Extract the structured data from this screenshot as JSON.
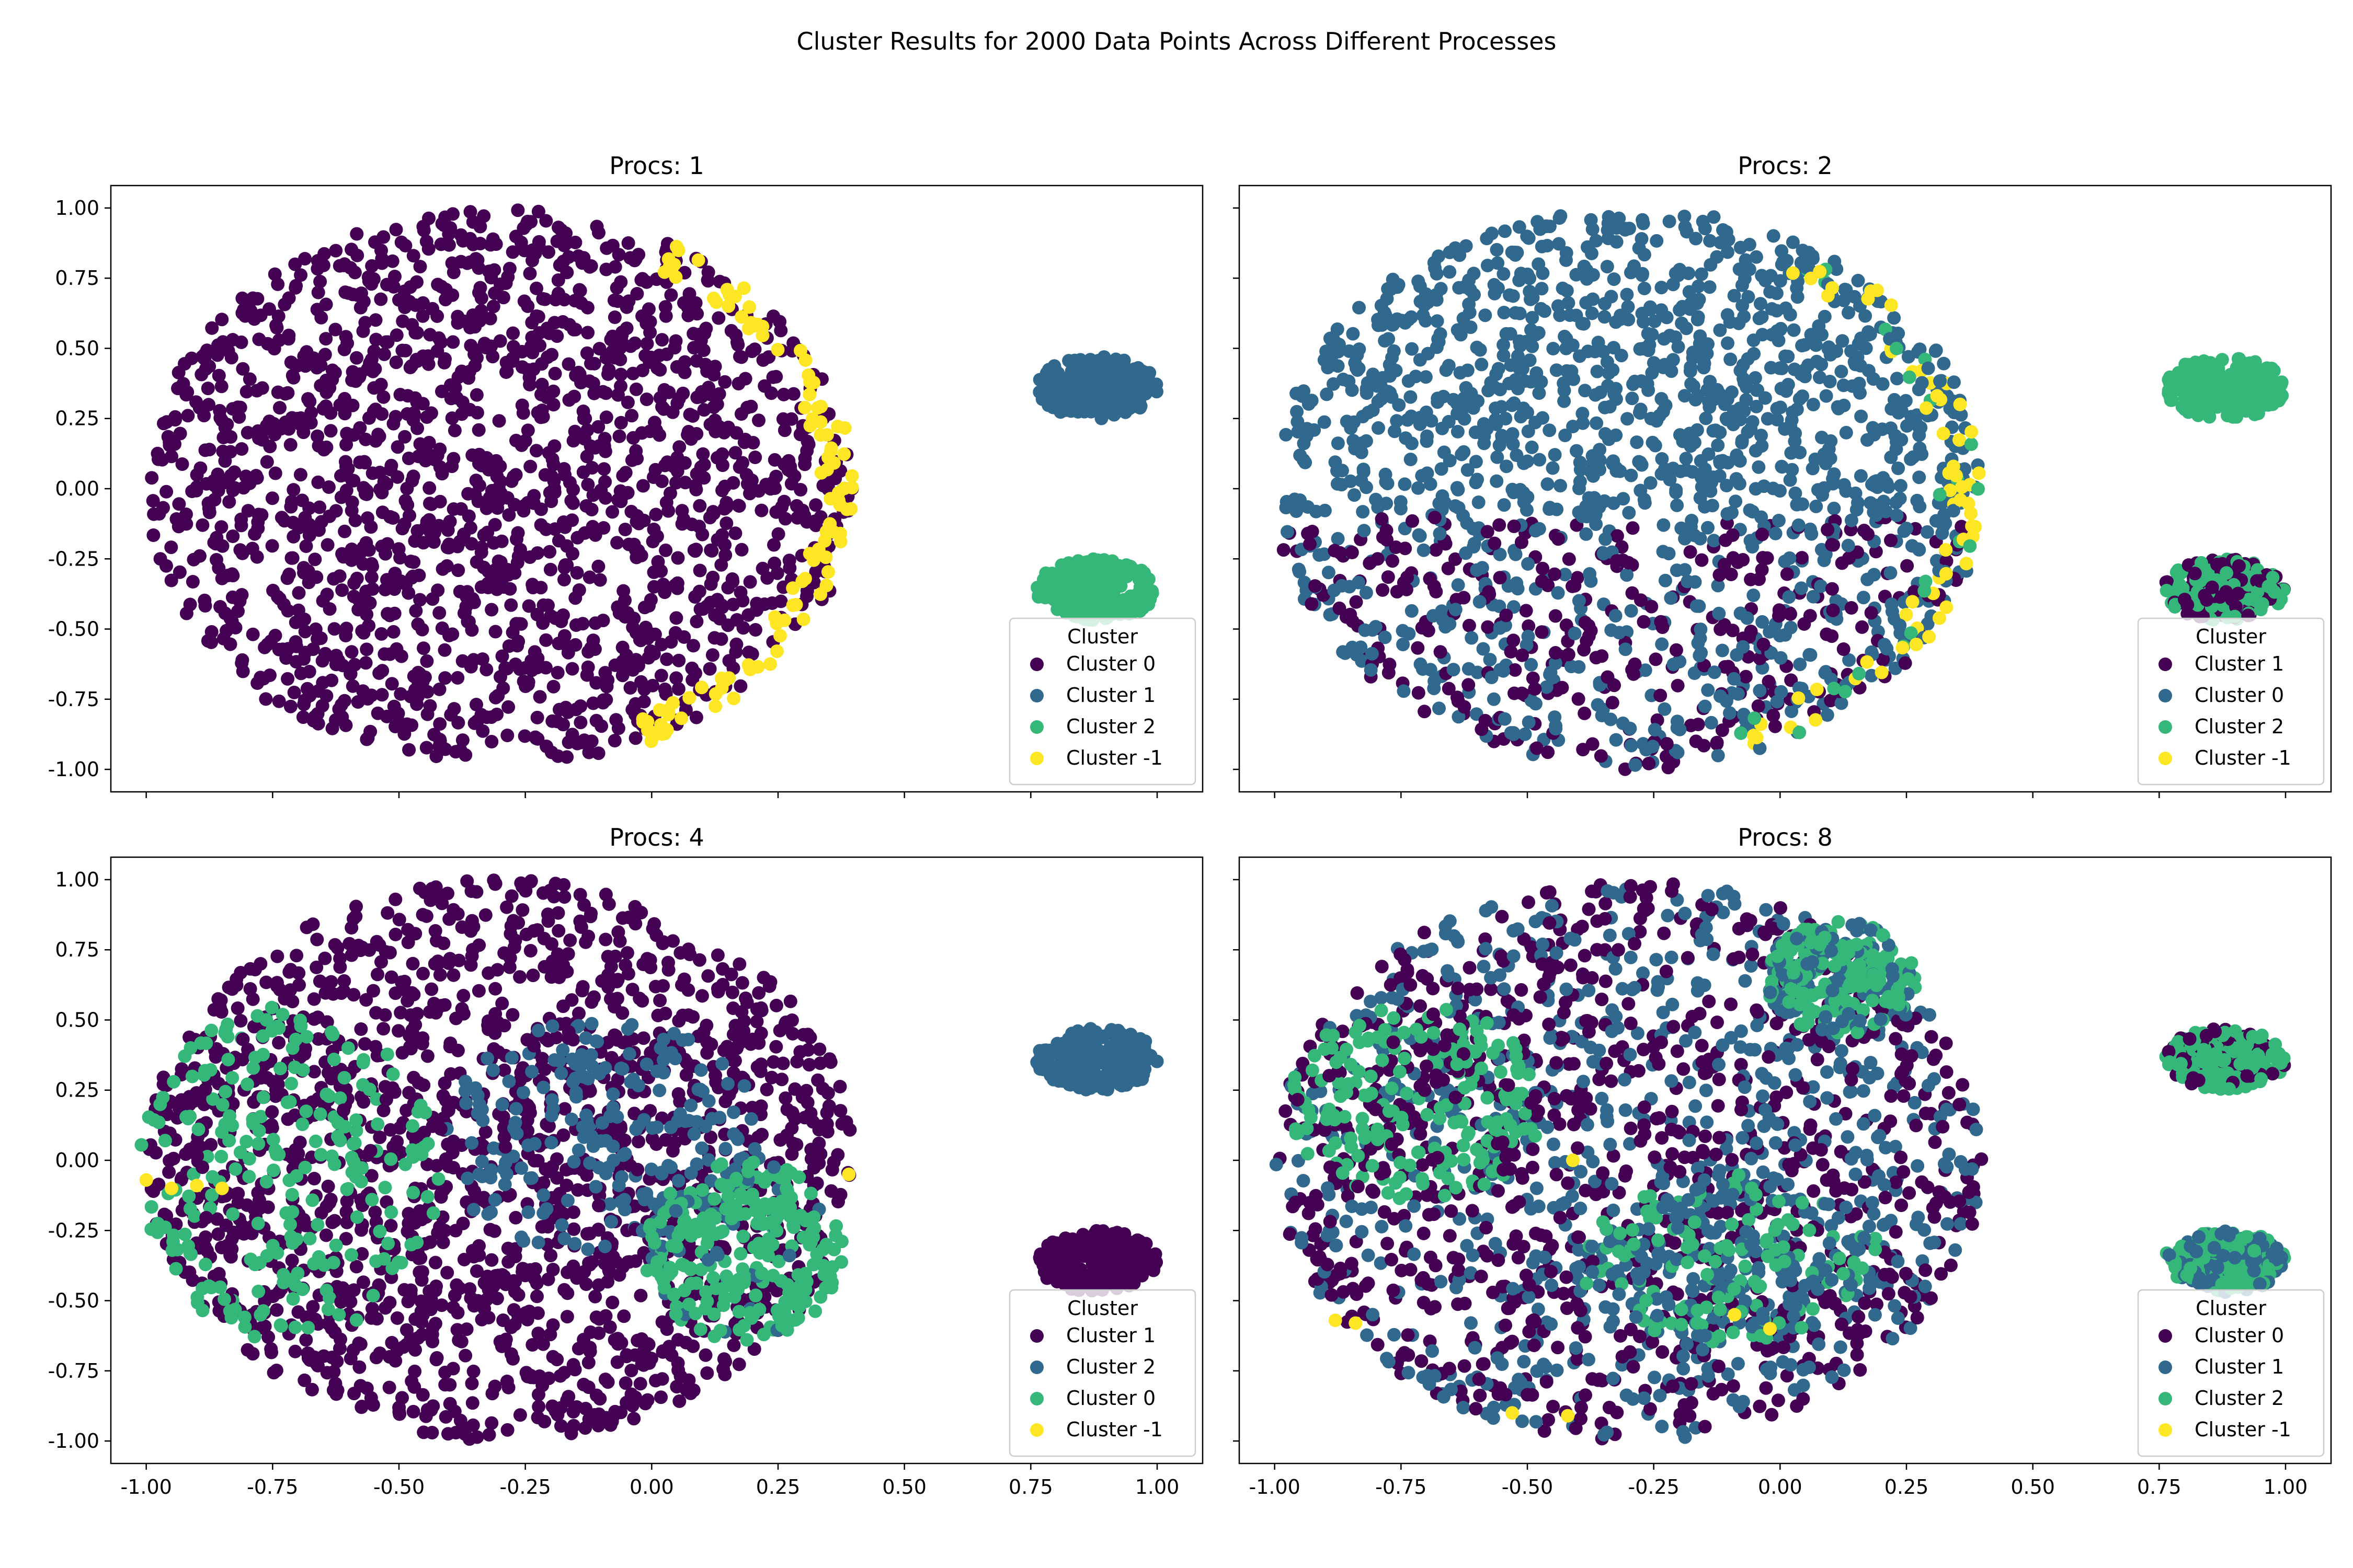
{
  "figure": {
    "title": "Cluster Results for 2000 Data Points Across Different Processes"
  },
  "colors": {
    "0": "#440154",
    "1": "#31688e",
    "2": "#35b779",
    "-1": "#fde725"
  },
  "chart_data": [
    {
      "type": "scatter",
      "title": "Procs: 1",
      "xlim": [
        -1.07,
        1.09
      ],
      "ylim": [
        -1.08,
        1.08
      ],
      "xticks": [
        "-1.00",
        "-0.75",
        "-0.50",
        "-0.25",
        "0.00",
        "0.25",
        "0.50",
        "0.75",
        "1.00"
      ],
      "yticks": [
        "1.00",
        "0.75",
        "0.50",
        "0.25",
        "0.00",
        "-0.25",
        "-0.50",
        "-0.75",
        "-1.00"
      ],
      "legend": {
        "title": "Cluster",
        "entries": [
          "Cluster 0",
          "Cluster 1",
          "Cluster 2",
          "Cluster -1"
        ],
        "colors": [
          "#440154",
          "#31688e",
          "#35b779",
          "#fde725"
        ],
        "placement": "lower right"
      },
      "regions": [
        {
          "shape": "disc",
          "cx": -0.3,
          "cy": 0.0,
          "rx": 0.7,
          "ry": 1.0,
          "mix": {
            "0": 1.0
          }
        },
        {
          "shape": "arc",
          "cx": -0.3,
          "cy": 0.0,
          "rx": 0.7,
          "ry": 1.0,
          "inner": 0.9,
          "angle_range": [
            -65,
            60
          ],
          "mix": {
            "-1": 1.0
          }
        },
        {
          "shape": "blob",
          "cx": 0.88,
          "cy": 0.36,
          "rx": 0.12,
          "ry": 0.11,
          "mix": {
            "1": 1.0
          }
        },
        {
          "shape": "blob",
          "cx": 0.88,
          "cy": -0.36,
          "rx": 0.12,
          "ry": 0.11,
          "mix": {
            "2": 1.0
          }
        }
      ]
    },
    {
      "type": "scatter",
      "title": "Procs: 2",
      "xlim": [
        -1.07,
        1.09
      ],
      "ylim": [
        -1.08,
        1.08
      ],
      "xticks": [
        "-1.00",
        "-0.75",
        "-0.50",
        "-0.25",
        "0.00",
        "0.25",
        "0.50",
        "0.75",
        "1.00"
      ],
      "yticks": [
        "1.00",
        "0.75",
        "0.50",
        "0.25",
        "0.00",
        "-0.25",
        "-0.50",
        "-0.75",
        "-1.00"
      ],
      "legend": {
        "title": "Cluster",
        "entries": [
          "Cluster 1",
          "Cluster 0",
          "Cluster 2",
          "Cluster -1"
        ],
        "colors": [
          "#440154",
          "#31688e",
          "#35b779",
          "#fde725"
        ],
        "placement": "lower right"
      },
      "regions": [
        {
          "shape": "disc",
          "cx": -0.3,
          "cy": 0.0,
          "rx": 0.7,
          "ry": 1.0,
          "split_y": -0.1,
          "upper_mix": {
            "1": 1.0
          },
          "lower_mix": {
            "1": 0.55,
            "0": 0.45
          }
        },
        {
          "shape": "arc",
          "cx": -0.3,
          "cy": 0.0,
          "rx": 0.7,
          "ry": 1.0,
          "inner": 0.88,
          "angle_range": [
            -70,
            60
          ],
          "mix": {
            "-1": 0.55,
            "2": 0.2,
            "1": 0.25
          }
        },
        {
          "shape": "blob",
          "cx": 0.88,
          "cy": 0.36,
          "rx": 0.12,
          "ry": 0.11,
          "mix": {
            "2": 1.0
          }
        },
        {
          "shape": "blob",
          "cx": 0.88,
          "cy": -0.36,
          "rx": 0.12,
          "ry": 0.11,
          "mix": {
            "2": 0.6,
            "0": 0.4
          }
        }
      ]
    },
    {
      "type": "scatter",
      "title": "Procs: 4",
      "xlim": [
        -1.07,
        1.09
      ],
      "ylim": [
        -1.08,
        1.08
      ],
      "xticks": [
        "-1.00",
        "-0.75",
        "-0.50",
        "-0.25",
        "0.00",
        "0.25",
        "0.50",
        "0.75",
        "1.00"
      ],
      "yticks": [
        "1.00",
        "0.75",
        "0.50",
        "0.25",
        "0.00",
        "-0.25",
        "-0.50",
        "-0.75",
        "-1.00"
      ],
      "legend": {
        "title": "Cluster",
        "entries": [
          "Cluster 1",
          "Cluster 2",
          "Cluster 0",
          "Cluster -1"
        ],
        "colors": [
          "#440154",
          "#31688e",
          "#35b779",
          "#fde725"
        ],
        "placement": "lower right"
      },
      "regions": [
        {
          "shape": "disc",
          "cx": -0.3,
          "cy": 0.0,
          "rx": 0.7,
          "ry": 1.0,
          "mix": {
            "0": 1.0
          }
        },
        {
          "shape": "disc",
          "cx": -0.72,
          "cy": -0.05,
          "rx": 0.3,
          "ry": 0.6,
          "mix": {
            "2": 0.9,
            "0": 0.1
          }
        },
        {
          "shape": "disc",
          "cx": -0.1,
          "cy": 0.08,
          "rx": 0.32,
          "ry": 0.42,
          "mix": {
            "1": 0.85,
            "0": 0.15
          }
        },
        {
          "shape": "disc",
          "cx": 0.18,
          "cy": -0.32,
          "rx": 0.2,
          "ry": 0.32,
          "mix": {
            "2": 0.9,
            "1": 0.1
          }
        },
        {
          "shape": "blob",
          "cx": 0.88,
          "cy": 0.36,
          "rx": 0.12,
          "ry": 0.11,
          "mix": {
            "1": 1.0
          }
        },
        {
          "shape": "blob",
          "cx": 0.88,
          "cy": -0.36,
          "rx": 0.12,
          "ry": 0.11,
          "mix": {
            "0": 1.0
          }
        }
      ],
      "extra_points": [
        {
          "x": -1.0,
          "y": -0.07,
          "c": "-1"
        },
        {
          "x": -0.95,
          "y": -0.1,
          "c": "-1"
        },
        {
          "x": -0.9,
          "y": -0.09,
          "c": "-1"
        },
        {
          "x": -0.85,
          "y": -0.1,
          "c": "-1"
        },
        {
          "x": 0.39,
          "y": -0.05,
          "c": "-1"
        }
      ]
    },
    {
      "type": "scatter",
      "title": "Procs: 8",
      "xlim": [
        -1.07,
        1.09
      ],
      "ylim": [
        -1.08,
        1.08
      ],
      "xticks": [
        "-1.00",
        "-0.75",
        "-0.50",
        "-0.25",
        "0.00",
        "0.25",
        "0.50",
        "0.75",
        "1.00"
      ],
      "yticks": [
        "1.00",
        "0.75",
        "0.50",
        "0.25",
        "0.00",
        "-0.25",
        "-0.50",
        "-0.75",
        "-1.00"
      ],
      "legend": {
        "title": "Cluster",
        "entries": [
          "Cluster 0",
          "Cluster 1",
          "Cluster 2",
          "Cluster -1"
        ],
        "colors": [
          "#440154",
          "#31688e",
          "#35b779",
          "#fde725"
        ],
        "placement": "lower right"
      },
      "regions": [
        {
          "shape": "disc",
          "cx": -0.3,
          "cy": 0.0,
          "rx": 0.7,
          "ry": 1.0,
          "mix": {
            "0": 0.55,
            "1": 0.45
          }
        },
        {
          "shape": "disc",
          "cx": -0.72,
          "cy": 0.2,
          "rx": 0.25,
          "ry": 0.35,
          "mix": {
            "2": 0.75,
            "0": 0.25
          }
        },
        {
          "shape": "disc",
          "cx": -0.1,
          "cy": -0.35,
          "rx": 0.3,
          "ry": 0.3,
          "mix": {
            "2": 0.5,
            "1": 0.5
          }
        },
        {
          "shape": "disc",
          "cx": 0.12,
          "cy": 0.65,
          "rx": 0.15,
          "ry": 0.2,
          "mix": {
            "2": 0.6,
            "1": 0.4
          }
        },
        {
          "shape": "blob",
          "cx": 0.88,
          "cy": 0.36,
          "rx": 0.12,
          "ry": 0.11,
          "mix": {
            "2": 0.65,
            "0": 0.35
          }
        },
        {
          "shape": "blob",
          "cx": 0.88,
          "cy": -0.36,
          "rx": 0.12,
          "ry": 0.11,
          "mix": {
            "2": 0.55,
            "1": 0.45
          }
        }
      ],
      "extra_points": [
        {
          "x": -0.88,
          "y": -0.57,
          "c": "-1"
        },
        {
          "x": -0.84,
          "y": -0.58,
          "c": "-1"
        },
        {
          "x": -0.42,
          "y": -0.91,
          "c": "-1"
        },
        {
          "x": -0.53,
          "y": -0.9,
          "c": "-1"
        },
        {
          "x": -0.41,
          "y": 0.0,
          "c": "-1"
        },
        {
          "x": -0.09,
          "y": -0.55,
          "c": "-1"
        },
        {
          "x": -0.02,
          "y": -0.6,
          "c": "-1"
        }
      ]
    }
  ]
}
